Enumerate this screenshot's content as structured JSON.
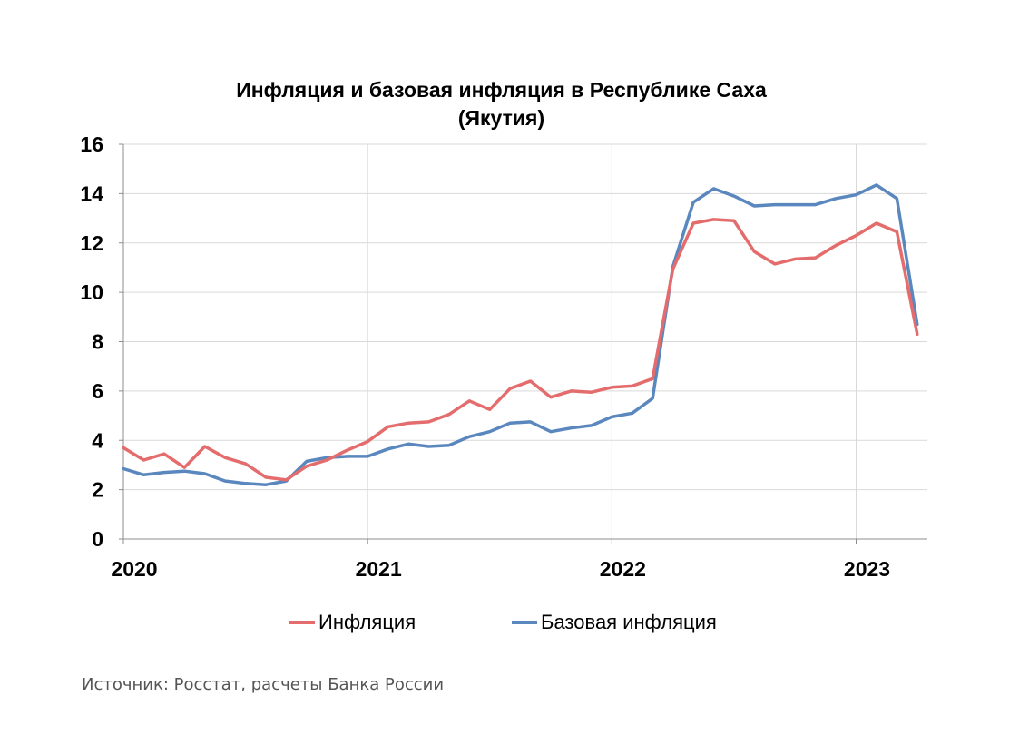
{
  "chart_data": {
    "type": "line",
    "title_lines": [
      "Инфляция и базовая инфляция в Республике Саха",
      "(Якутия)"
    ],
    "xlabel": "",
    "ylabel": "",
    "ylim": [
      0,
      16
    ],
    "yticks": [
      0,
      2,
      4,
      6,
      8,
      10,
      12,
      14,
      16
    ],
    "x_tick_labels": [
      "2020",
      "2021",
      "2022",
      "2023"
    ],
    "x_start": "2020-01",
    "grid": true,
    "legend_position": "bottom",
    "series": [
      {
        "name": "Инфляция",
        "color": "#E46C6C",
        "values": [
          3.7,
          3.2,
          3.45,
          2.9,
          3.75,
          3.3,
          3.05,
          2.5,
          2.4,
          2.95,
          3.2,
          3.6,
          3.95,
          4.55,
          4.7,
          4.75,
          5.05,
          5.6,
          5.25,
          6.1,
          6.4,
          5.75,
          6.0,
          5.95,
          6.15,
          6.2,
          6.5,
          10.95,
          12.8,
          12.95,
          12.9,
          11.65,
          11.15,
          11.35,
          11.4,
          11.9,
          12.3,
          12.8,
          12.45,
          8.3
        ]
      },
      {
        "name": "Базовая инфляция",
        "color": "#5A87BE",
        "values": [
          2.85,
          2.6,
          2.7,
          2.75,
          2.65,
          2.35,
          2.25,
          2.2,
          2.35,
          3.15,
          3.3,
          3.35,
          3.35,
          3.65,
          3.85,
          3.75,
          3.8,
          4.15,
          4.35,
          4.7,
          4.75,
          4.35,
          4.5,
          4.6,
          4.95,
          5.1,
          5.7,
          11.05,
          13.65,
          14.2,
          13.9,
          13.5,
          13.55,
          13.55,
          13.55,
          13.8,
          13.95,
          14.35,
          13.8,
          8.7
        ]
      }
    ]
  },
  "source_text": "Источник: Росстат, расчеты Банка России"
}
